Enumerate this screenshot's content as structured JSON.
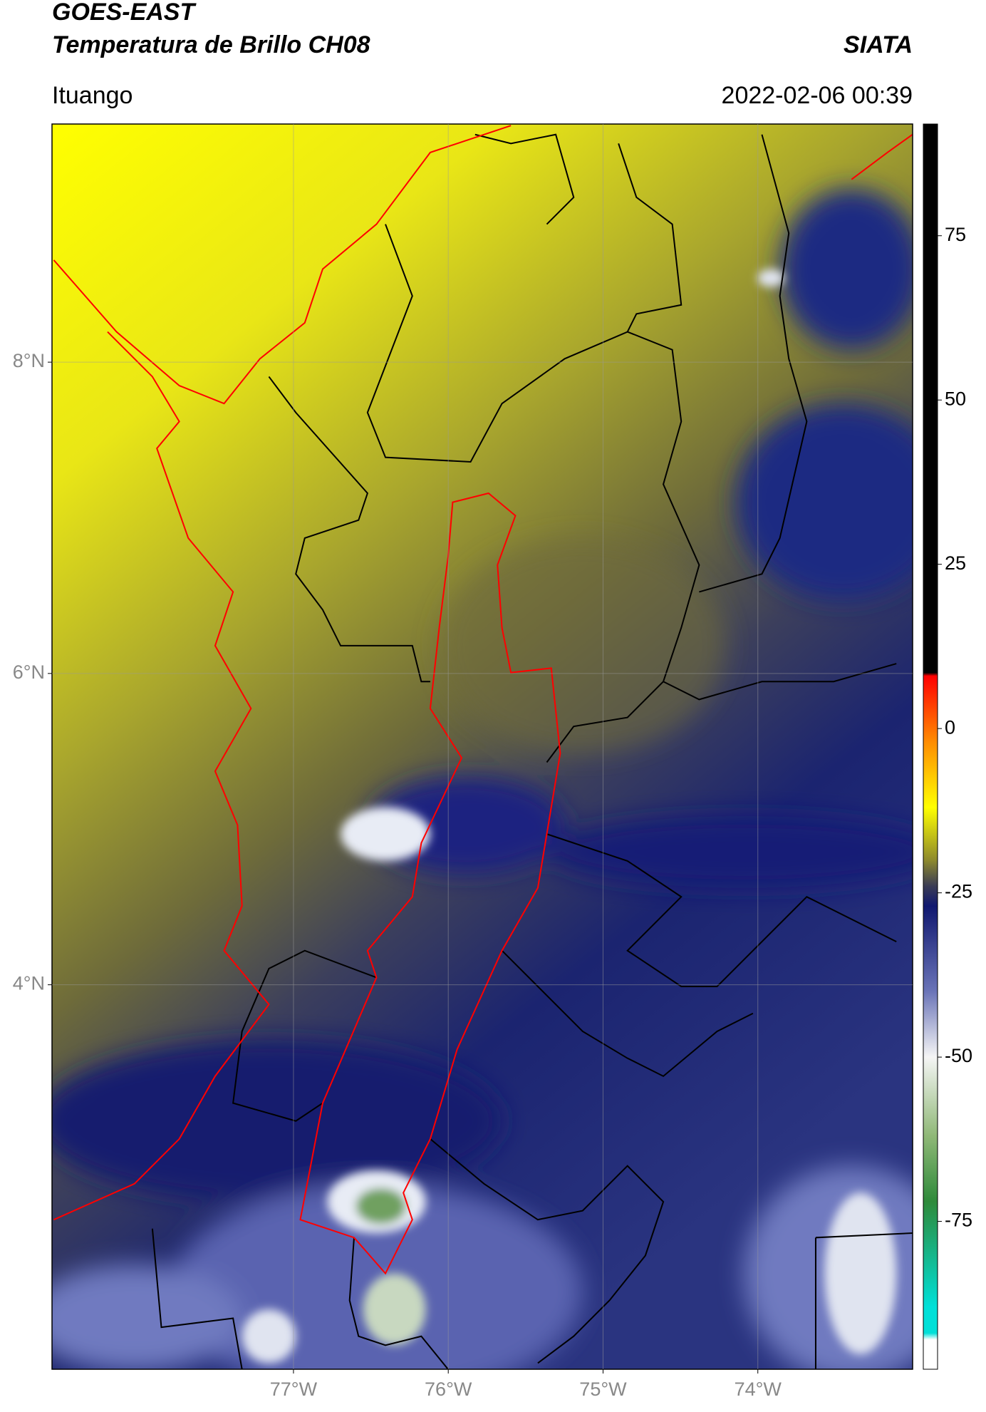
{
  "header": {
    "title": "GOES-EAST",
    "subtitle": "Temperatura de Brillo CH08",
    "source": "SIATA",
    "location": "Ituango",
    "datetime": "2022-02-06 00:39"
  },
  "map": {
    "xlim": [
      -78.56,
      -73.0
    ],
    "ylim": [
      1.53,
      9.53
    ],
    "xticks": [
      {
        "value": -77,
        "label": "77°W"
      },
      {
        "value": -76,
        "label": "76°W"
      },
      {
        "value": -75,
        "label": "75°W"
      },
      {
        "value": -74,
        "label": "74°W"
      }
    ],
    "yticks": [
      {
        "value": 4,
        "label": "4°N"
      },
      {
        "value": 6,
        "label": "6°N"
      },
      {
        "value": 8,
        "label": "8°N"
      }
    ],
    "grid": true
  },
  "colorbar": {
    "lim": [
      -97.5,
      92
    ],
    "ticks": [
      -75,
      -50,
      -25,
      0,
      25,
      50,
      75
    ],
    "colors": [
      {
        "value": 92,
        "color": "#000000"
      },
      {
        "value": 8.5,
        "color": "#000000"
      },
      {
        "value": 8,
        "color": "#ff0000"
      },
      {
        "value": -2,
        "color": "#ff8c00"
      },
      {
        "value": -12,
        "color": "#ffff00"
      },
      {
        "value": -20,
        "color": "#8e8a2c"
      },
      {
        "value": -24,
        "color": "#3a3c55"
      },
      {
        "value": -27,
        "color": "#101870"
      },
      {
        "value": -40,
        "color": "#6a74b8"
      },
      {
        "value": -50,
        "color": "#f5f5f5"
      },
      {
        "value": -62,
        "color": "#8fb877"
      },
      {
        "value": -72,
        "color": "#2e8a3a"
      },
      {
        "value": -88,
        "color": "#00e0d8"
      },
      {
        "value": -92,
        "color": "#00e0d8"
      },
      {
        "value": -93,
        "color": "#ffffff"
      },
      {
        "value": -97.5,
        "color": "#ffffff"
      }
    ]
  }
}
